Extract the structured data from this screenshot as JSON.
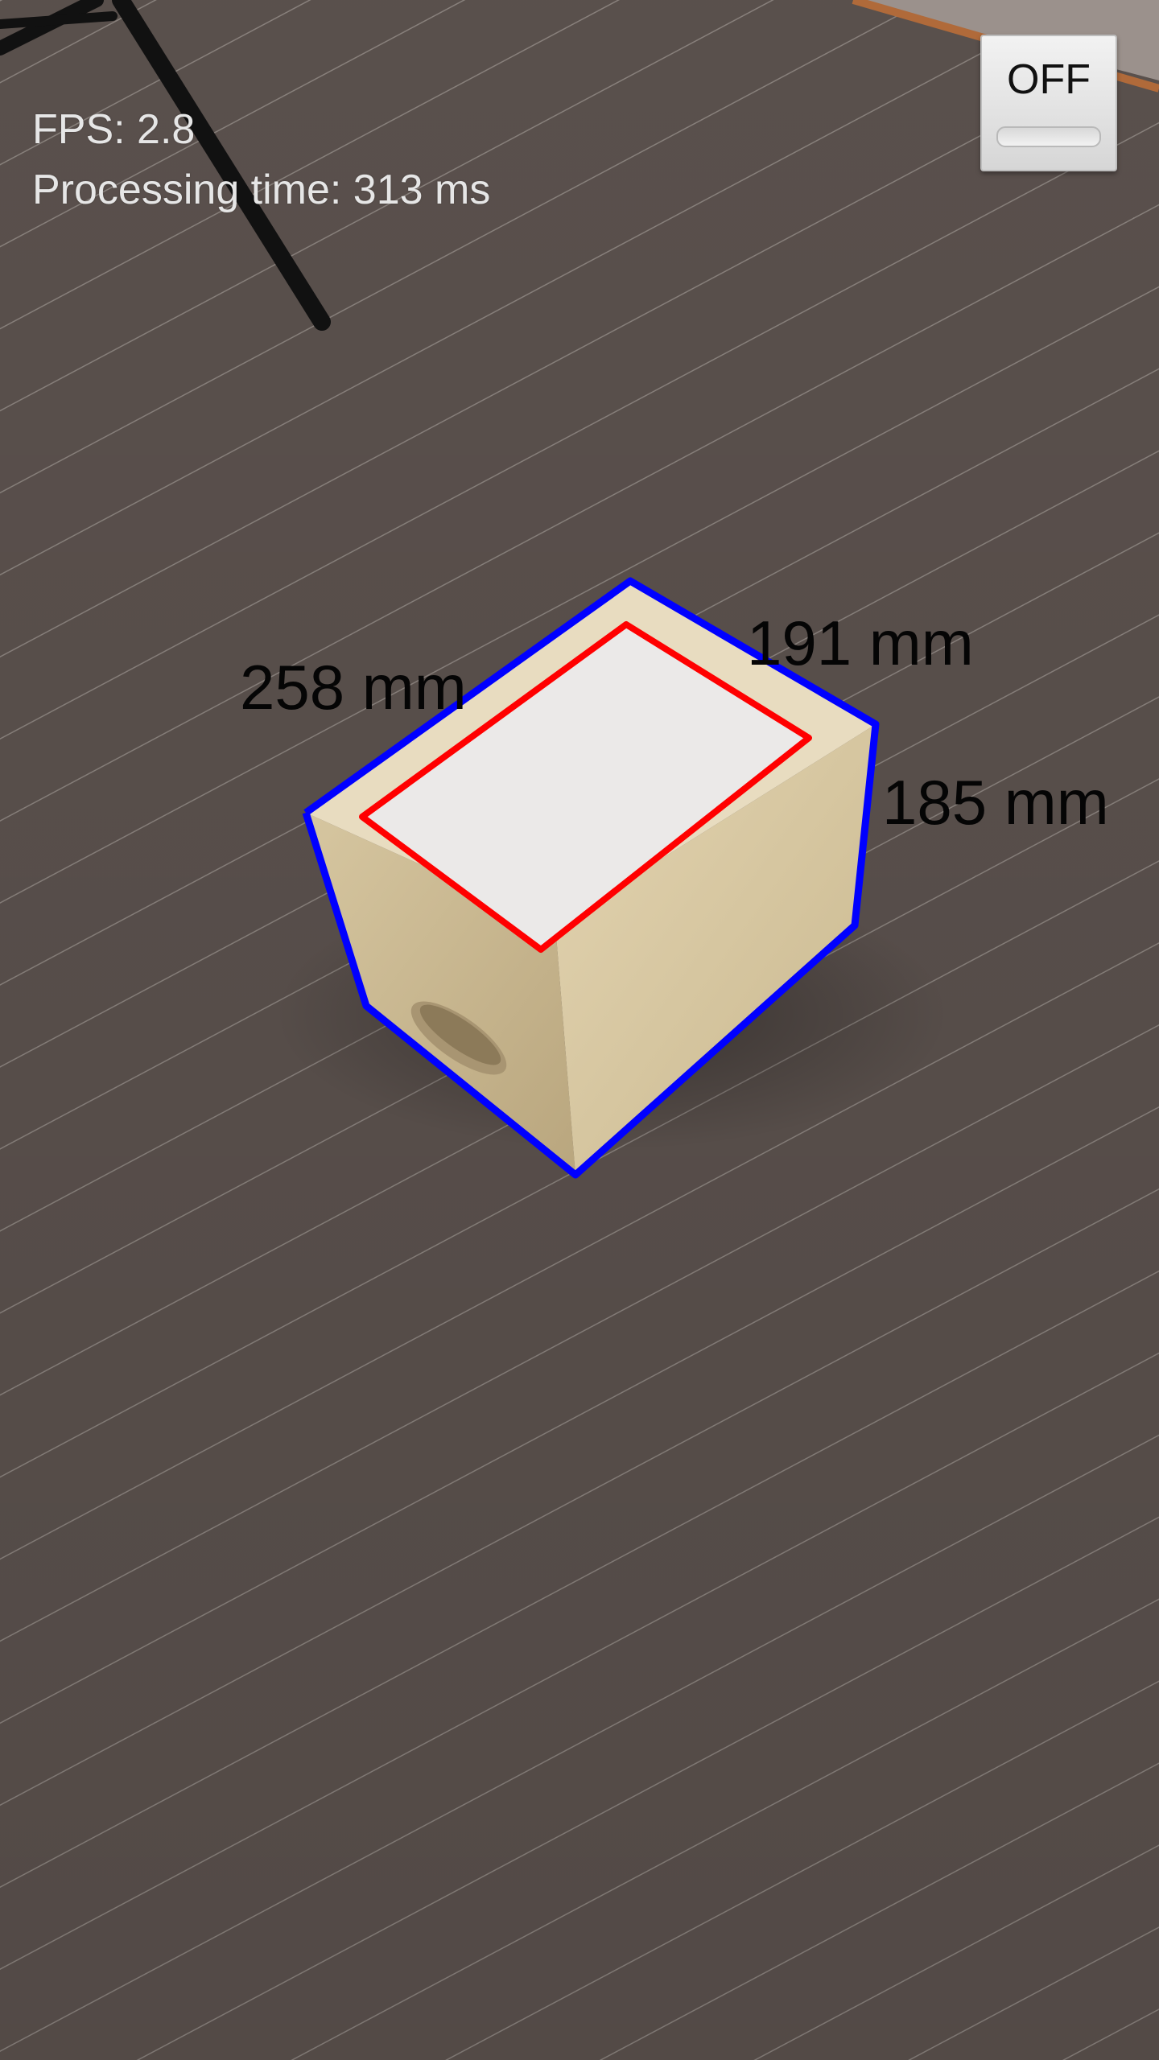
{
  "hud": {
    "fps": "FPS: 2.8",
    "processing_time": "Processing time: 313 ms"
  },
  "toggle": {
    "label": "OFF",
    "state": "off"
  },
  "measurements": {
    "length": "258 mm",
    "width": "191 mm",
    "height": "185 mm"
  },
  "colors": {
    "box_outline": "#0000ff",
    "top_face_outline": "#ff0000",
    "floor": "#5e5450",
    "box_wood": "#d8c9a6"
  },
  "icons": {
    "toggle_bar": "switch-track-icon"
  }
}
